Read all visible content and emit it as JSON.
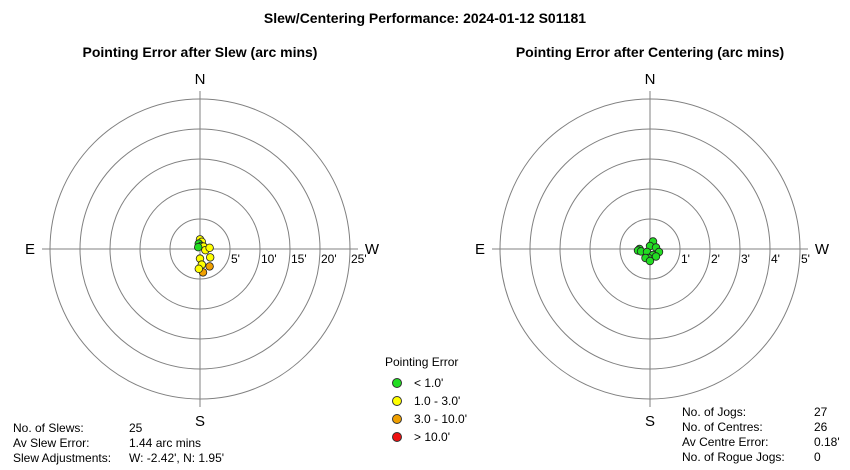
{
  "title": "Slew/Centering Performance: 2024-01-12 S01181",
  "chart_data": [
    {
      "type": "scatter",
      "title": "Pointing Error after Slew (arc mins)",
      "coordinates": "polar",
      "directions": {
        "north": "N",
        "south": "S",
        "east": "E",
        "west": "W"
      },
      "ring_labels": [
        "5'",
        "10'",
        "15'",
        "20'",
        "25'"
      ],
      "rmax": 25,
      "points": [
        {
          "x": 0.0,
          "y": 1.6,
          "cat": 1
        },
        {
          "x": 0.3,
          "y": 1.2,
          "cat": 1
        },
        {
          "x": -0.2,
          "y": 0.9,
          "cat": 0
        },
        {
          "x": 0.2,
          "y": 0.5,
          "cat": 0
        },
        {
          "x": 0.6,
          "y": 0.4,
          "cat": 1
        },
        {
          "x": -0.3,
          "y": 0.3,
          "cat": 0
        },
        {
          "x": 0.9,
          "y": -0.2,
          "cat": 1
        },
        {
          "x": 1.6,
          "y": 0.2,
          "cat": 1
        },
        {
          "x": 1.7,
          "y": -1.4,
          "cat": 1
        },
        {
          "x": 0.0,
          "y": -1.6,
          "cat": 1
        },
        {
          "x": 0.3,
          "y": -2.6,
          "cat": 1
        },
        {
          "x": 1.6,
          "y": -2.9,
          "cat": 2
        },
        {
          "x": 0.5,
          "y": -3.9,
          "cat": 2
        },
        {
          "x": -0.2,
          "y": -3.3,
          "cat": 1
        }
      ]
    },
    {
      "type": "scatter",
      "title": "Pointing Error after Centering (arc mins)",
      "coordinates": "polar",
      "directions": {
        "north": "N",
        "south": "S",
        "east": "E",
        "west": "W"
      },
      "ring_labels": [
        "1'",
        "2'",
        "3'",
        "4'",
        "5'"
      ],
      "rmax": 5,
      "points": [
        {
          "x": 0.1,
          "y": 0.25,
          "cat": 0
        },
        {
          "x": 0.0,
          "y": 0.1,
          "cat": 0
        },
        {
          "x": 0.2,
          "y": 0.05,
          "cat": 0
        },
        {
          "x": -0.35,
          "y": 0.0,
          "cat": 0
        },
        {
          "x": -0.4,
          "y": -0.05,
          "cat": 0
        },
        {
          "x": -0.3,
          "y": -0.08,
          "cat": 0
        },
        {
          "x": -0.1,
          "y": -0.1,
          "cat": 0
        },
        {
          "x": 0.3,
          "y": -0.1,
          "cat": 0
        },
        {
          "x": 0.1,
          "y": -0.2,
          "cat": 0
        },
        {
          "x": 0.2,
          "y": -0.25,
          "cat": 0
        },
        {
          "x": -0.05,
          "y": -0.3,
          "cat": 0
        },
        {
          "x": -0.15,
          "y": -0.3,
          "cat": 0
        },
        {
          "x": 0.0,
          "y": -0.4,
          "cat": 0
        }
      ]
    }
  ],
  "legend": {
    "title": "Pointing Error",
    "items": [
      {
        "label": "< 1.0'",
        "color": "#22dd22"
      },
      {
        "label": "1.0 - 3.0'",
        "color": "#ffff00"
      },
      {
        "label": "3.0 - 10.0'",
        "color": "#f0a000"
      },
      {
        "label": "> 10.0'",
        "color": "#ee1111"
      }
    ]
  },
  "slew_stats": {
    "slews_label": "No. of Slews:",
    "slews_value": "25",
    "av_label": "Av Slew Error:",
    "av_value": "1.44 arc mins",
    "adj_label": "Slew Adjustments:",
    "adj_value": "W: -2.42', N: 1.95'"
  },
  "centre_stats": {
    "jogs_label": "No. of Jogs:",
    "jogs_value": "27",
    "centres_label": "No. of Centres:",
    "centres_value": "26",
    "av_label": "Av Centre Error:",
    "av_value": "0.18'",
    "rogue_label": "No. of Rogue Jogs:",
    "rogue_value": "0"
  }
}
